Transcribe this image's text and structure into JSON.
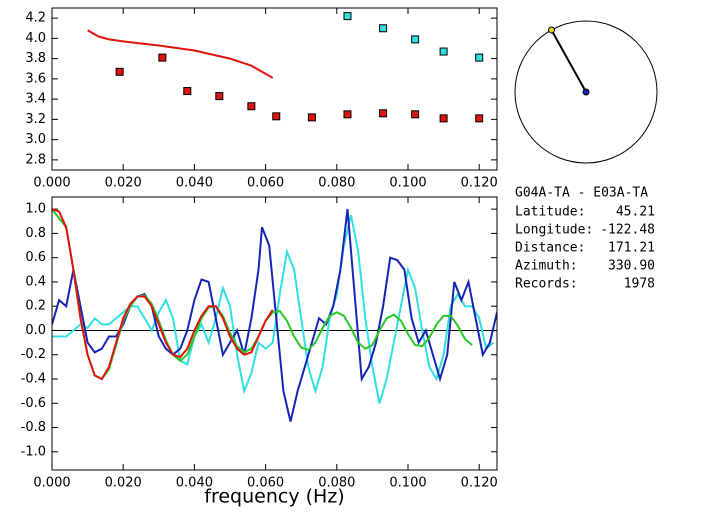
{
  "chart_data": [
    {
      "type": "scatter",
      "xlim": [
        0,
        0.125
      ],
      "ylim": [
        2.7,
        4.3
      ],
      "xticks": [
        {
          "value": 0,
          "label": "0.000"
        },
        {
          "value": 0.02,
          "label": "0.020"
        },
        {
          "value": 0.04,
          "label": "0.040"
        },
        {
          "value": 0.06,
          "label": "0.060"
        },
        {
          "value": 0.08,
          "label": "0.080"
        },
        {
          "value": 0.1,
          "label": "0.100"
        },
        {
          "value": 0.12,
          "label": "0.120"
        }
      ],
      "yticks": [
        2.8,
        {
          "value": 3.0,
          "label": "3.0"
        },
        3.2,
        3.4,
        3.6,
        3.8,
        {
          "value": 4.0,
          "label": "4.0"
        },
        4.2
      ],
      "series": [
        {
          "mode": "line",
          "color": "#e0140c",
          "x": [
            0.01,
            0.013,
            0.016,
            0.02,
            0.03,
            0.04,
            0.05,
            0.056,
            0.062
          ],
          "values": [
            4.08,
            4.02,
            3.99,
            3.97,
            3.93,
            3.88,
            3.8,
            3.73,
            3.61
          ]
        },
        {
          "mode": "markers",
          "color": "#e0140c",
          "x": [
            0.019,
            0.031,
            0.038,
            0.047,
            0.056,
            0.063,
            0.073,
            0.083,
            0.093,
            0.102,
            0.11,
            0.12
          ],
          "values": [
            3.67,
            3.81,
            3.48,
            3.43,
            3.33,
            3.23,
            3.22,
            3.25,
            3.26,
            3.25,
            3.21,
            3.21
          ]
        },
        {
          "mode": "markers",
          "color": "#30e0e0",
          "x": [
            0.083,
            0.093,
            0.102,
            0.11,
            0.12
          ],
          "values": [
            4.22,
            4.1,
            3.99,
            3.87,
            3.81
          ]
        }
      ]
    },
    {
      "type": "line",
      "xlabel": "frequency (Hz)",
      "xlim": [
        0,
        0.125
      ],
      "ylim": [
        -1.15,
        1.1
      ],
      "hline": 0,
      "xticks": [
        {
          "value": 0,
          "label": "0.000"
        },
        {
          "value": 0.02,
          "label": "0.020"
        },
        {
          "value": 0.04,
          "label": "0.040"
        },
        {
          "value": 0.06,
          "label": "0.060"
        },
        {
          "value": 0.08,
          "label": "0.080"
        },
        {
          "value": 0.1,
          "label": "0.100"
        },
        {
          "value": 0.12,
          "label": "0.120"
        }
      ],
      "yticks": [
        {
          "value": -1.0,
          "label": "-1.0"
        },
        -0.8,
        -0.6,
        -0.4,
        -0.2,
        {
          "value": 0.0,
          "label": "0.0"
        },
        0.2,
        0.4,
        0.6,
        0.8,
        {
          "value": 1.0,
          "label": "1.0"
        }
      ],
      "series": [
        {
          "color": "#30e0e0",
          "x": [
            0,
            0.004,
            0.008,
            0.01,
            0.012,
            0.014,
            0.016,
            0.018,
            0.02,
            0.022,
            0.024,
            0.026,
            0.028,
            0.03,
            0.032,
            0.034,
            0.036,
            0.038,
            0.04,
            0.042,
            0.044,
            0.046,
            0.048,
            0.05,
            0.052,
            0.054,
            0.056,
            0.058,
            0.06,
            0.062,
            0.064,
            0.066,
            0.068,
            0.07,
            0.072,
            0.074,
            0.076,
            0.078,
            0.08,
            0.082,
            0.084,
            0.086,
            0.088,
            0.09,
            0.092,
            0.094,
            0.096,
            0.098,
            0.1,
            0.102,
            0.104,
            0.106,
            0.108,
            0.11,
            0.112,
            0.114,
            0.116,
            0.118,
            0.12,
            0.122,
            0.124
          ],
          "values": [
            -0.05,
            -0.05,
            0.05,
            0.02,
            0.1,
            0.05,
            0.05,
            0.1,
            0.15,
            0.2,
            0.2,
            0.1,
            0.0,
            0.15,
            0.25,
            0.1,
            -0.25,
            -0.28,
            -0.05,
            0.05,
            -0.1,
            0.1,
            0.35,
            0.2,
            -0.2,
            -0.5,
            -0.35,
            -0.1,
            -0.15,
            -0.1,
            0.3,
            0.65,
            0.5,
            0.1,
            -0.3,
            -0.5,
            -0.3,
            0.1,
            0.3,
            0.7,
            0.95,
            0.65,
            0.1,
            -0.3,
            -0.6,
            -0.4,
            -0.1,
            0.2,
            0.5,
            0.35,
            0.0,
            -0.3,
            -0.4,
            -0.2,
            0.2,
            0.3,
            0.2,
            0.2,
            0.1,
            -0.15,
            -0.1
          ]
        },
        {
          "color": "#1424b4",
          "x": [
            0,
            0.002,
            0.004,
            0.006,
            0.008,
            0.01,
            0.012,
            0.014,
            0.016,
            0.018,
            0.02,
            0.022,
            0.024,
            0.026,
            0.028,
            0.03,
            0.032,
            0.034,
            0.036,
            0.038,
            0.04,
            0.042,
            0.044,
            0.046,
            0.048,
            0.05,
            0.052,
            0.054,
            0.056,
            0.058,
            0.059,
            0.061,
            0.063,
            0.065,
            0.067,
            0.069,
            0.071,
            0.073,
            0.075,
            0.077,
            0.079,
            0.081,
            0.083,
            0.085,
            0.087,
            0.089,
            0.091,
            0.093,
            0.095,
            0.097,
            0.099,
            0.101,
            0.103,
            0.105,
            0.107,
            0.109,
            0.111,
            0.113,
            0.115,
            0.117,
            0.119,
            0.121,
            0.123,
            0.125
          ],
          "values": [
            0.05,
            0.25,
            0.2,
            0.5,
            0.2,
            -0.1,
            -0.18,
            -0.15,
            -0.05,
            -0.05,
            0.05,
            0.2,
            0.28,
            0.3,
            0.2,
            -0.05,
            -0.15,
            -0.2,
            -0.15,
            0.0,
            0.25,
            0.42,
            0.4,
            0.1,
            -0.2,
            -0.1,
            0.0,
            -0.2,
            0.1,
            0.5,
            0.85,
            0.7,
            0.1,
            -0.5,
            -0.75,
            -0.5,
            -0.3,
            -0.1,
            0.1,
            0.05,
            0.2,
            0.5,
            1.0,
            0.3,
            -0.4,
            -0.3,
            -0.1,
            0.2,
            0.6,
            0.58,
            0.5,
            0.1,
            -0.1,
            0.0,
            -0.2,
            -0.4,
            -0.2,
            0.4,
            0.25,
            0.4,
            0.1,
            -0.2,
            -0.1,
            0.15
          ]
        },
        {
          "color": "#28c828",
          "x": [
            0,
            0.004,
            0.006,
            0.008,
            0.01,
            0.012,
            0.014,
            0.016,
            0.018,
            0.02,
            0.022,
            0.024,
            0.026,
            0.028,
            0.03,
            0.032,
            0.034,
            0.036,
            0.038,
            0.04,
            0.042,
            0.044,
            0.046,
            0.048,
            0.05,
            0.052,
            0.054,
            0.056,
            0.058,
            0.06,
            0.062,
            0.064,
            0.066,
            0.068,
            0.07,
            0.072,
            0.074,
            0.076,
            0.078,
            0.08,
            0.082,
            0.084,
            0.086,
            0.088,
            0.09,
            0.092,
            0.094,
            0.096,
            0.098,
            0.1,
            0.102,
            0.104,
            0.106,
            0.108,
            0.11,
            0.112,
            0.114,
            0.116,
            0.118
          ],
          "values": [
            1.0,
            0.85,
            0.5,
            0.1,
            -0.2,
            -0.37,
            -0.4,
            -0.32,
            -0.12,
            0.08,
            0.2,
            0.28,
            0.29,
            0.22,
            0.08,
            -0.08,
            -0.2,
            -0.25,
            -0.2,
            -0.05,
            0.1,
            0.19,
            0.2,
            0.12,
            -0.02,
            -0.13,
            -0.18,
            -0.15,
            -0.05,
            0.08,
            0.15,
            0.16,
            0.08,
            -0.05,
            -0.14,
            -0.16,
            -0.1,
            0.02,
            0.12,
            0.15,
            0.12,
            0.02,
            -0.1,
            -0.15,
            -0.12,
            0.0,
            0.1,
            0.13,
            0.08,
            -0.03,
            -0.12,
            -0.13,
            -0.06,
            0.05,
            0.12,
            0.12,
            0.04,
            -0.07,
            -0.12
          ]
        },
        {
          "color": "#e0140c",
          "x": [
            0,
            0.002,
            0.004,
            0.006,
            0.008,
            0.01,
            0.012,
            0.014,
            0.016,
            0.018,
            0.02,
            0.022,
            0.024,
            0.026,
            0.028,
            0.03,
            0.032,
            0.034,
            0.036,
            0.038,
            0.04,
            0.042,
            0.044,
            0.046,
            0.048,
            0.05,
            0.052,
            0.054,
            0.056,
            0.058,
            0.06,
            0.062
          ],
          "values": [
            1.0,
            0.98,
            0.85,
            0.5,
            0.1,
            -0.2,
            -0.37,
            -0.4,
            -0.3,
            -0.1,
            0.1,
            0.22,
            0.28,
            0.28,
            0.2,
            0.05,
            -0.1,
            -0.2,
            -0.22,
            -0.15,
            0.0,
            0.12,
            0.2,
            0.2,
            0.1,
            -0.05,
            -0.15,
            -0.2,
            -0.18,
            -0.05,
            0.08,
            0.17
          ]
        }
      ]
    }
  ],
  "station_info": {
    "title": "G04A-TA  -  E03A-TA",
    "rows": [
      {
        "label": "Latitude:",
        "value": 45.21
      },
      {
        "label": "Longitude:",
        "value": -122.48
      },
      {
        "label": "Distance:",
        "value": 171.21
      },
      {
        "label": "Azimuth:",
        "value": 330.9,
        "value_label": "330.90"
      },
      {
        "label": "Records:",
        "value": 1978
      }
    ]
  }
}
